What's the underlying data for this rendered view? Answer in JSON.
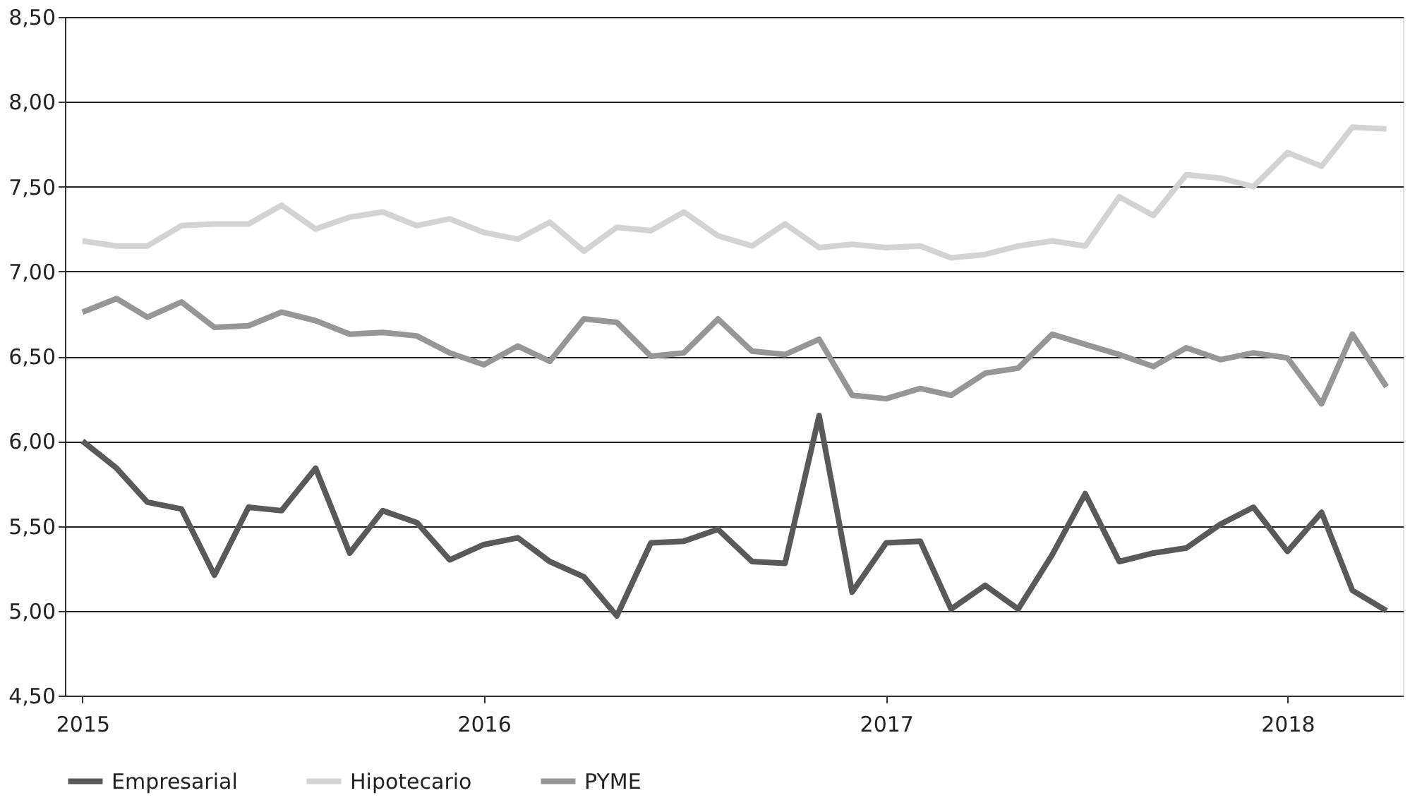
{
  "chart_data": {
    "type": "line",
    "x": [
      "2015-01",
      "2015-02",
      "2015-03",
      "2015-04",
      "2015-05",
      "2015-06",
      "2015-07",
      "2015-08",
      "2015-09",
      "2015-10",
      "2015-11",
      "2015-12",
      "2016-01",
      "2016-02",
      "2016-03",
      "2016-04",
      "2016-05",
      "2016-06",
      "2016-07",
      "2016-08",
      "2016-09",
      "2016-10",
      "2016-11",
      "2016-12",
      "2017-01",
      "2017-02",
      "2017-03",
      "2017-04",
      "2017-05",
      "2017-06",
      "2017-07",
      "2017-08",
      "2017-09",
      "2017-10",
      "2017-11",
      "2017-12",
      "2018-01",
      "2018-02",
      "2018-03",
      "2018-04"
    ],
    "series": [
      {
        "name": "Empresarial",
        "color": "#595959",
        "values": [
          6.0,
          5.84,
          5.64,
          5.6,
          5.21,
          5.61,
          5.59,
          5.84,
          5.34,
          5.59,
          5.52,
          5.3,
          5.39,
          5.43,
          5.29,
          5.2,
          4.97,
          5.4,
          5.41,
          5.48,
          5.29,
          5.28,
          6.15,
          5.11,
          5.4,
          5.41,
          5.01,
          5.15,
          5.01,
          5.33,
          5.69,
          5.29,
          5.34,
          5.37,
          5.51,
          5.61,
          5.35,
          5.58,
          5.12,
          5.0
        ]
      },
      {
        "name": "Hipotecario",
        "color": "#d3d3d3",
        "values": [
          7.18,
          7.15,
          7.15,
          7.27,
          7.28,
          7.28,
          7.39,
          7.25,
          7.32,
          7.35,
          7.27,
          7.31,
          7.23,
          7.19,
          7.29,
          7.12,
          7.26,
          7.24,
          7.35,
          7.21,
          7.15,
          7.28,
          7.14,
          7.16,
          7.14,
          7.15,
          7.08,
          7.1,
          7.15,
          7.18,
          7.15,
          7.44,
          7.33,
          7.57,
          7.55,
          7.5,
          7.7,
          7.62,
          7.85,
          7.84
        ]
      },
      {
        "name": "PYME",
        "color": "#969696",
        "values": [
          6.76,
          6.84,
          6.73,
          6.82,
          6.67,
          6.68,
          6.76,
          6.71,
          6.63,
          6.64,
          6.62,
          6.52,
          6.45,
          6.56,
          6.47,
          6.72,
          6.7,
          6.5,
          6.52,
          6.72,
          6.53,
          6.51,
          6.6,
          6.27,
          6.25,
          6.31,
          6.27,
          6.4,
          6.43,
          6.63,
          6.57,
          6.51,
          6.44,
          6.55,
          6.48,
          6.52,
          6.49,
          6.22,
          6.63,
          6.32
        ]
      }
    ],
    "xlim": [
      "2014-12-16",
      "2018-04-16"
    ],
    "xticks": [
      {
        "value": "2015-01",
        "label": "2015"
      },
      {
        "value": "2016-01",
        "label": "2016"
      },
      {
        "value": "2017-01",
        "label": "2017"
      },
      {
        "value": "2018-01",
        "label": "2018"
      }
    ],
    "ylim": [
      4.5,
      8.5
    ],
    "yticks": [
      {
        "value": 4.5,
        "label": "4,50"
      },
      {
        "value": 5.0,
        "label": "5,00"
      },
      {
        "value": 5.5,
        "label": "5,50"
      },
      {
        "value": 6.0,
        "label": "6,00"
      },
      {
        "value": 6.5,
        "label": "6,50"
      },
      {
        "value": 7.0,
        "label": "7,00"
      },
      {
        "value": 7.5,
        "label": "7,50"
      },
      {
        "value": 8.0,
        "label": "8,00"
      },
      {
        "value": 8.5,
        "label": "8,50"
      }
    ],
    "grid": "y",
    "legend": "bottom",
    "marker": "none",
    "line_style": "solid"
  }
}
